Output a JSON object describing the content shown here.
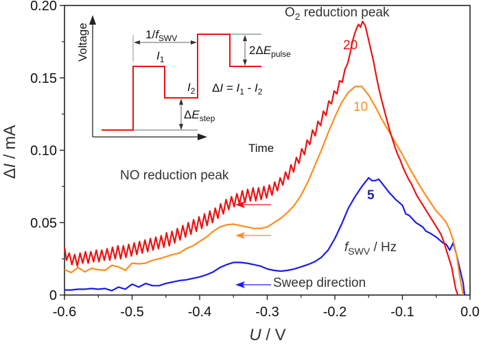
{
  "chart_data": {
    "type": "line",
    "title": "",
    "xlabel": "U / V",
    "ylabel": "ΔI / mA",
    "xlim": [
      -0.6,
      0.0
    ],
    "ylim": [
      0,
      0.2
    ],
    "xticks": [
      -0.6,
      -0.5,
      -0.4,
      -0.3,
      -0.2,
      -0.1,
      0.0
    ],
    "xtick_labels": [
      "-0.6",
      "-0.5",
      "-0.4",
      "-0.3",
      "-0.2",
      "-0.1",
      "0.0"
    ],
    "yticks": [
      0,
      0.05,
      0.1,
      0.15,
      0.2
    ],
    "ytick_labels": [
      "0",
      "0.05",
      "0.10",
      "0.15",
      "0.20"
    ],
    "grid": false,
    "series": [
      {
        "name": "20",
        "color": "#ee1111",
        "x": [
          -0.6,
          -0.597,
          -0.593,
          -0.589,
          -0.585,
          -0.581,
          -0.577,
          -0.573,
          -0.569,
          -0.565,
          -0.561,
          -0.557,
          -0.553,
          -0.549,
          -0.545,
          -0.541,
          -0.537,
          -0.533,
          -0.529,
          -0.525,
          -0.521,
          -0.517,
          -0.513,
          -0.509,
          -0.505,
          -0.501,
          -0.497,
          -0.493,
          -0.489,
          -0.485,
          -0.481,
          -0.477,
          -0.473,
          -0.469,
          -0.465,
          -0.461,
          -0.457,
          -0.453,
          -0.449,
          -0.445,
          -0.441,
          -0.437,
          -0.433,
          -0.429,
          -0.425,
          -0.421,
          -0.417,
          -0.413,
          -0.409,
          -0.405,
          -0.401,
          -0.397,
          -0.393,
          -0.389,
          -0.385,
          -0.381,
          -0.377,
          -0.373,
          -0.369,
          -0.365,
          -0.361,
          -0.357,
          -0.353,
          -0.349,
          -0.345,
          -0.341,
          -0.337,
          -0.333,
          -0.329,
          -0.325,
          -0.321,
          -0.317,
          -0.313,
          -0.309,
          -0.305,
          -0.301,
          -0.297,
          -0.293,
          -0.289,
          -0.285,
          -0.281,
          -0.277,
          -0.273,
          -0.269,
          -0.265,
          -0.261,
          -0.257,
          -0.253,
          -0.249,
          -0.245,
          -0.241,
          -0.237,
          -0.233,
          -0.229,
          -0.225,
          -0.221,
          -0.217,
          -0.213,
          -0.209,
          -0.205,
          -0.201,
          -0.197,
          -0.193,
          -0.189,
          -0.185,
          -0.181,
          -0.177,
          -0.174,
          -0.171,
          -0.168,
          -0.165,
          -0.162,
          -0.159,
          -0.155,
          -0.151,
          -0.147,
          -0.143,
          -0.139,
          -0.135,
          -0.131,
          -0.127,
          -0.123,
          -0.119,
          -0.115,
          -0.111,
          -0.107,
          -0.103,
          -0.099,
          -0.095,
          -0.091,
          -0.087,
          -0.083,
          -0.079,
          -0.075,
          -0.071,
          -0.067,
          -0.063,
          -0.059,
          -0.055,
          -0.051,
          -0.047,
          -0.043,
          -0.039,
          -0.035,
          -0.031,
          -0.027,
          -0.024,
          -0.021,
          -0.018
        ],
        "y": [
          0.033,
          0.024,
          0.029,
          0.021,
          0.028,
          0.02,
          0.029,
          0.022,
          0.03,
          0.022,
          0.03,
          0.023,
          0.031,
          0.023,
          0.031,
          0.024,
          0.032,
          0.024,
          0.033,
          0.025,
          0.034,
          0.025,
          0.034,
          0.026,
          0.035,
          0.027,
          0.036,
          0.028,
          0.037,
          0.029,
          0.038,
          0.03,
          0.039,
          0.031,
          0.04,
          0.032,
          0.041,
          0.033,
          0.043,
          0.034,
          0.044,
          0.036,
          0.046,
          0.038,
          0.048,
          0.04,
          0.05,
          0.042,
          0.052,
          0.044,
          0.054,
          0.046,
          0.056,
          0.048,
          0.058,
          0.05,
          0.06,
          0.053,
          0.063,
          0.056,
          0.066,
          0.059,
          0.068,
          0.061,
          0.07,
          0.063,
          0.072,
          0.064,
          0.073,
          0.065,
          0.074,
          0.065,
          0.074,
          0.066,
          0.075,
          0.067,
          0.076,
          0.069,
          0.078,
          0.072,
          0.081,
          0.076,
          0.085,
          0.08,
          0.09,
          0.085,
          0.095,
          0.091,
          0.101,
          0.097,
          0.107,
          0.104,
          0.114,
          0.11,
          0.12,
          0.117,
          0.127,
          0.124,
          0.134,
          0.132,
          0.141,
          0.139,
          0.148,
          0.147,
          0.156,
          0.16,
          0.168,
          0.175,
          0.18,
          0.184,
          0.187,
          0.185,
          0.189,
          0.186,
          0.178,
          0.17,
          0.162,
          0.152,
          0.143,
          0.135,
          0.128,
          0.121,
          0.114,
          0.108,
          0.102,
          0.097,
          0.093,
          0.088,
          0.084,
          0.08,
          0.077,
          0.073,
          0.069,
          0.066,
          0.063,
          0.06,
          0.057,
          0.054,
          0.051,
          0.048,
          0.045,
          0.042,
          0.037,
          0.031,
          0.025,
          0.019,
          0.011,
          0.004,
          0.0
        ]
      },
      {
        "name": "10",
        "color": "#ff8c1a",
        "x": [
          -0.6,
          -0.59,
          -0.58,
          -0.57,
          -0.56,
          -0.55,
          -0.54,
          -0.53,
          -0.52,
          -0.51,
          -0.5,
          -0.49,
          -0.48,
          -0.47,
          -0.46,
          -0.45,
          -0.44,
          -0.43,
          -0.42,
          -0.41,
          -0.4,
          -0.39,
          -0.38,
          -0.37,
          -0.36,
          -0.35,
          -0.34,
          -0.33,
          -0.32,
          -0.31,
          -0.3,
          -0.29,
          -0.28,
          -0.27,
          -0.26,
          -0.25,
          -0.24,
          -0.23,
          -0.22,
          -0.21,
          -0.2,
          -0.19,
          -0.18,
          -0.17,
          -0.16,
          -0.15,
          -0.14,
          -0.13,
          -0.12,
          -0.11,
          -0.1,
          -0.09,
          -0.08,
          -0.07,
          -0.06,
          -0.05,
          -0.04,
          -0.035,
          -0.03,
          -0.025,
          -0.02,
          -0.015,
          -0.01
        ],
        "y": [
          0.0175,
          0.0155,
          0.019,
          0.016,
          0.0185,
          0.0175,
          0.017,
          0.0205,
          0.0195,
          0.017,
          0.022,
          0.0215,
          0.022,
          0.024,
          0.025,
          0.0265,
          0.028,
          0.029,
          0.032,
          0.034,
          0.037,
          0.04,
          0.044,
          0.047,
          0.0485,
          0.049,
          0.048,
          0.047,
          0.046,
          0.046,
          0.047,
          0.05,
          0.053,
          0.057,
          0.062,
          0.069,
          0.078,
          0.089,
          0.1,
          0.112,
          0.123,
          0.133,
          0.14,
          0.144,
          0.144,
          0.138,
          0.13,
          0.121,
          0.113,
          0.105,
          0.097,
          0.088,
          0.08,
          0.072,
          0.065,
          0.058,
          0.053,
          0.05,
          0.045,
          0.038,
          0.028,
          0.012,
          0.0
        ]
      },
      {
        "name": "5",
        "color": "#1a1aee",
        "x": [
          -0.6,
          -0.59,
          -0.58,
          -0.57,
          -0.56,
          -0.55,
          -0.54,
          -0.53,
          -0.52,
          -0.51,
          -0.5,
          -0.49,
          -0.48,
          -0.47,
          -0.46,
          -0.45,
          -0.44,
          -0.43,
          -0.42,
          -0.41,
          -0.4,
          -0.39,
          -0.38,
          -0.37,
          -0.36,
          -0.35,
          -0.34,
          -0.33,
          -0.32,
          -0.31,
          -0.3,
          -0.29,
          -0.28,
          -0.27,
          -0.26,
          -0.25,
          -0.24,
          -0.23,
          -0.22,
          -0.21,
          -0.2,
          -0.19,
          -0.18,
          -0.17,
          -0.16,
          -0.15,
          -0.145,
          -0.14,
          -0.135,
          -0.13,
          -0.12,
          -0.11,
          -0.1,
          -0.095,
          -0.09,
          -0.08,
          -0.07,
          -0.065,
          -0.06,
          -0.05,
          -0.04,
          -0.035,
          -0.03,
          -0.025,
          -0.02,
          -0.015,
          -0.01,
          -0.008
        ],
        "y": [
          0.0035,
          0.0035,
          0.004,
          0.004,
          0.0045,
          0.004,
          0.0045,
          0.003,
          0.0055,
          0.004,
          0.0075,
          0.0055,
          0.008,
          0.0065,
          0.0065,
          0.008,
          0.009,
          0.01,
          0.0105,
          0.0115,
          0.0125,
          0.014,
          0.016,
          0.019,
          0.021,
          0.0225,
          0.0225,
          0.022,
          0.021,
          0.02,
          0.018,
          0.017,
          0.0165,
          0.017,
          0.018,
          0.0195,
          0.021,
          0.023,
          0.026,
          0.031,
          0.039,
          0.049,
          0.06,
          0.068,
          0.075,
          0.081,
          0.079,
          0.079,
          0.08,
          0.077,
          0.071,
          0.066,
          0.062,
          0.056,
          0.055,
          0.05,
          0.047,
          0.044,
          0.043,
          0.04,
          0.036,
          0.035,
          0.031,
          0.036,
          0.028,
          0.018,
          0.008,
          0.0
        ]
      }
    ],
    "annotations": {
      "o2_peak": "O",
      "o2_sub": "2",
      "o2_rest": " reduction peak",
      "no_peak": "NO reduction peak",
      "label_20": "20",
      "label_10": "10",
      "label_5": "5",
      "fswv_f": "f",
      "fswv_sub": "SWV",
      "fswv_unit": " / Hz",
      "sweep_direction": "Sweep direction"
    },
    "axis_title_parts": {
      "y_delta": "Δ",
      "y_var": "I",
      "y_unit": " / mA",
      "x_var": "U",
      "x_unit": " / V"
    },
    "inset": {
      "ylabel": "Voltage",
      "xlabel": "Time",
      "period_prefix": "1/",
      "period_f": "f",
      "period_sub": "SWV",
      "i1": "I",
      "i1_sub": "1",
      "i2": "I",
      "i2_sub": "2",
      "pulse_prefix": "2Δ",
      "pulse_E": "E",
      "pulse_sub": "pulse",
      "step_prefix": "Δ",
      "step_E": "E",
      "step_sub": "step",
      "eq_delta": "Δ",
      "eq_I": "I",
      "eq_equals": " = ",
      "eq_I1": "I",
      "eq_1": "1",
      "eq_minus": " - ",
      "eq_I2": "I",
      "eq_2": "2"
    }
  }
}
